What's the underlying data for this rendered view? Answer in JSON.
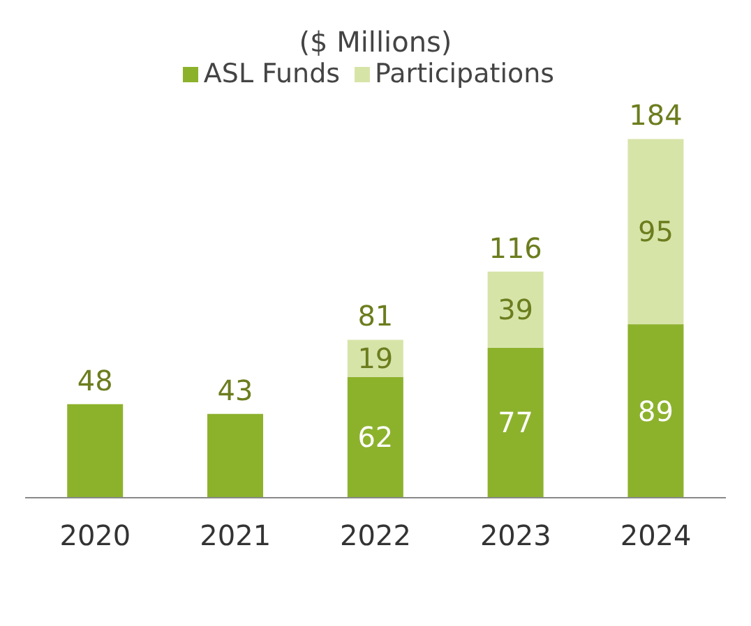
{
  "chart_data": {
    "type": "bar",
    "subtitle": "($ Millions)",
    "categories": [
      "2020",
      "2021",
      "2022",
      "2023",
      "2024"
    ],
    "stacked": true,
    "legend": "top",
    "series": [
      {
        "name": "ASL Funds",
        "color": "#8cb22c",
        "values": [
          48,
          43,
          62,
          77,
          89
        ],
        "value_labels": [
          null,
          null,
          "62",
          "77",
          "89"
        ]
      },
      {
        "name": "Participations",
        "color": "#d7e4a8",
        "values": [
          null,
          null,
          19,
          39,
          95
        ],
        "value_labels": [
          null,
          null,
          "19",
          "39",
          "95"
        ]
      }
    ],
    "totals": [
      "48",
      "43",
      "81",
      "116",
      "184"
    ]
  }
}
